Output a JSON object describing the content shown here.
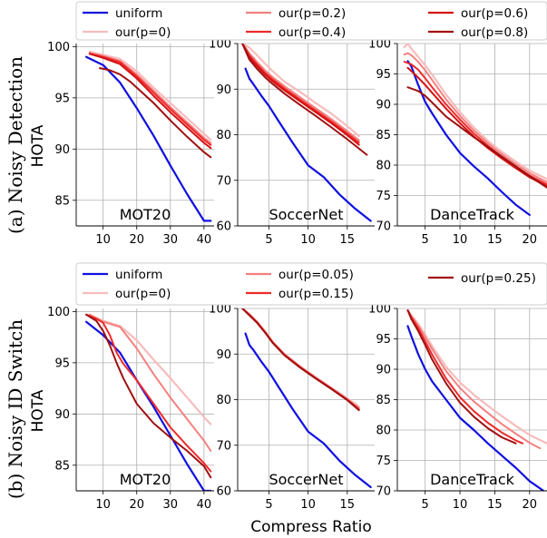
{
  "figure": {
    "xlabel": "Compress Ratio",
    "ylabel": "HOTA",
    "row_labels": [
      "(a) Noisy Detection",
      "(b) Noisy ID Switch"
    ]
  },
  "legends": [
    {
      "entries": [
        {
          "name": "uniform",
          "color": "#1010e0"
        },
        {
          "name": "our(p=0)",
          "color": "#f7bcbc"
        },
        {
          "name": "our(p=0.2)",
          "color": "#f58080"
        },
        {
          "name": "our(p=0.4)",
          "color": "#ee2a2a"
        },
        {
          "name": "our(p=0.6)",
          "color": "#d41111"
        },
        {
          "name": "our(p=0.8)",
          "color": "#a01010"
        }
      ]
    },
    {
      "entries": [
        {
          "name": "uniform",
          "color": "#1010e0"
        },
        {
          "name": "our(p=0)",
          "color": "#f7bcbc"
        },
        {
          "name": "our(p=0.05)",
          "color": "#f58080"
        },
        {
          "name": "our(p=0.15)",
          "color": "#ee2a2a"
        },
        {
          "name": "our(p=0.25)",
          "color": "#a01010"
        }
      ]
    }
  ],
  "chart_data": [
    {
      "type": "line",
      "title": "MOT20",
      "ylabel": "HOTA",
      "xlim": [
        2,
        43
      ],
      "ylim": [
        82.5,
        100.3
      ],
      "xticks": [
        10,
        20,
        30,
        40
      ],
      "yticks": [
        85,
        90,
        95,
        100
      ],
      "series": [
        {
          "name": "uniform",
          "x": [
            5,
            10,
            15,
            20,
            25,
            30,
            35,
            40,
            42
          ],
          "y": [
            99.0,
            98.2,
            96.5,
            94.0,
            91.3,
            88.4,
            85.6,
            83.0,
            83.0
          ]
        },
        {
          "name": "our(p=0)",
          "x": [
            6,
            10,
            15,
            20,
            25,
            30,
            35,
            40,
            42
          ],
          "y": [
            99.5,
            99.2,
            98.8,
            97.6,
            96.0,
            94.5,
            93.0,
            91.5,
            90.9
          ]
        },
        {
          "name": "our(p=0.2)",
          "x": [
            6,
            10,
            15,
            20,
            25,
            30,
            35,
            40,
            42
          ],
          "y": [
            99.4,
            99.1,
            98.6,
            97.3,
            95.7,
            94.1,
            92.6,
            91.1,
            90.6
          ]
        },
        {
          "name": "our(p=0.4)",
          "x": [
            6,
            10,
            15,
            20,
            25,
            30,
            35,
            40,
            42
          ],
          "y": [
            99.3,
            99.0,
            98.5,
            97.1,
            95.5,
            93.9,
            92.4,
            90.9,
            90.4
          ]
        },
        {
          "name": "our(p=0.6)",
          "x": [
            6,
            10,
            15,
            20,
            25,
            30,
            35,
            40,
            42
          ],
          "y": [
            99.3,
            98.9,
            98.3,
            96.9,
            95.2,
            93.6,
            92.1,
            90.6,
            90.1
          ]
        },
        {
          "name": "our(p=0.8)",
          "x": [
            9,
            12,
            15,
            18,
            21,
            25,
            30,
            35,
            40,
            42
          ],
          "y": [
            97.9,
            97.7,
            97.3,
            96.6,
            95.7,
            94.5,
            92.8,
            91.2,
            89.7,
            89.2
          ]
        }
      ]
    },
    {
      "type": "line",
      "title": "SoccerNet",
      "xlim": [
        1,
        18.5
      ],
      "ylim": [
        60,
        100
      ],
      "xticks": [
        5,
        10,
        15
      ],
      "yticks": [
        60,
        70,
        80,
        90,
        100
      ],
      "series": [
        {
          "name": "uniform",
          "x": [
            2,
            2.5,
            3,
            4,
            5,
            6,
            8,
            10,
            12,
            14,
            16,
            18
          ],
          "y": [
            94.5,
            92.3,
            91.1,
            88.6,
            86.3,
            83.6,
            78.3,
            73.3,
            70.7,
            66.9,
            63.8,
            61.1
          ]
        },
        {
          "name": "our(p=0)",
          "x": [
            1.6,
            2.5,
            3.5,
            4.5,
            5.5,
            7,
            9,
            11,
            13,
            15,
            16.5
          ],
          "y": [
            100,
            99.1,
            97.4,
            95.6,
            93.9,
            91.6,
            89.4,
            86.9,
            84.6,
            81.9,
            79.7
          ]
        },
        {
          "name": "our(p=0.2)",
          "x": [
            1.6,
            2.5,
            3.5,
            4.5,
            5.5,
            7,
            9,
            11,
            13,
            15,
            16.5
          ],
          "y": [
            100,
            97.9,
            95.9,
            94.1,
            92.6,
            90.6,
            88.2,
            85.8,
            83.4,
            80.8,
            78.8
          ]
        },
        {
          "name": "our(p=0.4)",
          "x": [
            1.6,
            2.5,
            3.5,
            4.5,
            5.5,
            7,
            9,
            11,
            13,
            15,
            16.5
          ],
          "y": [
            100,
            97.4,
            95.4,
            93.6,
            92.1,
            90.1,
            87.7,
            85.3,
            82.9,
            80.3,
            78.3
          ]
        },
        {
          "name": "our(p=0.6)",
          "x": [
            1.6,
            2.5,
            3.5,
            4.5,
            5.5,
            7,
            9,
            11,
            13,
            15,
            16.5
          ],
          "y": [
            100,
            97.0,
            95.0,
            93.2,
            91.7,
            89.7,
            87.3,
            84.9,
            82.5,
            79.9,
            77.8
          ]
        },
        {
          "name": "our(p=0.8)",
          "x": [
            1.6,
            2.5,
            3.5,
            4.5,
            5.5,
            7,
            9,
            11,
            13,
            15,
            17.5
          ],
          "y": [
            100,
            96.5,
            94.4,
            92.6,
            91.1,
            89.0,
            86.5,
            84.1,
            81.6,
            79.0,
            75.6
          ]
        }
      ]
    },
    {
      "type": "line",
      "title": "DanceTrack",
      "xlim": [
        1,
        22.5
      ],
      "ylim": [
        70,
        100
      ],
      "xticks": [
        5,
        10,
        15,
        20
      ],
      "yticks": [
        70,
        75,
        80,
        85,
        90,
        95,
        100
      ],
      "series": [
        {
          "name": "uniform",
          "x": [
            2.5,
            3,
            4,
            5,
            6,
            8,
            10,
            12,
            14,
            16,
            18,
            20
          ],
          "y": [
            97.1,
            96.3,
            93.2,
            90.4,
            88.5,
            85.0,
            82.0,
            79.8,
            77.8,
            75.6,
            73.5,
            71.8
          ]
        },
        {
          "name": "our(p=0)",
          "x": [
            2,
            2.5,
            3,
            4,
            5,
            6,
            8,
            10,
            12,
            14,
            16,
            18,
            20,
            22.5
          ],
          "y": [
            99.4,
            100,
            99.2,
            97.8,
            96.4,
            94.9,
            91.6,
            88.7,
            86.2,
            84.0,
            82.2,
            80.6,
            79.1,
            77.7
          ]
        },
        {
          "name": "our(p=0.2)",
          "x": [
            2,
            2.5,
            3,
            4,
            5,
            6,
            8,
            10,
            12,
            14,
            16,
            18,
            20,
            22.5
          ],
          "y": [
            98.2,
            98.4,
            98.1,
            97.0,
            95.6,
            94.0,
            90.8,
            88.1,
            85.7,
            83.6,
            81.8,
            80.2,
            78.7,
            77.2
          ]
        },
        {
          "name": "our(p=0.4)",
          "x": [
            2,
            2.5,
            3,
            4,
            5,
            6,
            8,
            10,
            12,
            14,
            16,
            18,
            20,
            22.5
          ],
          "y": [
            97.0,
            96.8,
            96.6,
            95.7,
            94.3,
            92.8,
            90.0,
            87.5,
            85.2,
            83.2,
            81.4,
            79.8,
            78.3,
            76.8
          ]
        },
        {
          "name": "our(p=0.6)",
          "x": [
            2.5,
            3,
            4,
            5,
            6,
            8,
            10,
            12,
            14,
            16,
            18,
            20,
            22.5
          ],
          "y": [
            96.0,
            95.5,
            94.4,
            93.2,
            91.9,
            89.3,
            86.9,
            84.7,
            82.8,
            81.1,
            79.5,
            78.0,
            76.5
          ]
        },
        {
          "name": "our(p=0.8)",
          "x": [
            2.5,
            3,
            4,
            5,
            6,
            8,
            10,
            12,
            14,
            16,
            18,
            20,
            22.5
          ],
          "y": [
            92.8,
            92.6,
            92.2,
            91.4,
            90.3,
            88.0,
            86.3,
            84.6,
            83.0,
            81.4,
            79.8,
            78.2,
            76.3
          ]
        }
      ]
    },
    {
      "type": "line",
      "title": "MOT20",
      "ylabel": "HOTA",
      "xlim": [
        2,
        43
      ],
      "ylim": [
        82.5,
        100.3
      ],
      "xticks": [
        10,
        20,
        30,
        40
      ],
      "yticks": [
        85,
        90,
        95,
        100
      ],
      "series": [
        {
          "name": "uniform",
          "x": [
            5,
            10,
            15,
            20,
            25,
            30,
            35,
            40,
            42
          ],
          "y": [
            99.0,
            97.7,
            96.0,
            93.3,
            90.7,
            87.9,
            85.1,
            82.5,
            82.5
          ]
        },
        {
          "name": "our(p=0)",
          "x": [
            6,
            10,
            15,
            20,
            25,
            30,
            35,
            40,
            42
          ],
          "y": [
            99.7,
            99.1,
            98.6,
            97.2,
            95.3,
            93.5,
            91.6,
            89.7,
            89.0
          ]
        },
        {
          "name": "our(p=0.05)",
          "x": [
            6,
            10,
            15,
            20,
            25,
            30,
            35,
            40,
            42
          ],
          "y": [
            99.7,
            99.0,
            98.5,
            96.4,
            93.9,
            91.6,
            89.5,
            87.4,
            86.4
          ]
        },
        {
          "name": "our(p=0.15)",
          "x": [
            5,
            8,
            10,
            12,
            14,
            16,
            20,
            25,
            30,
            35,
            40,
            42
          ],
          "y": [
            99.7,
            99.3,
            98.9,
            97.7,
            96.0,
            94.9,
            93.3,
            91.0,
            88.7,
            86.9,
            85.2,
            84.4
          ]
        },
        {
          "name": "our(p=0.25)",
          "x": [
            5,
            8,
            10,
            12,
            14,
            16,
            20,
            25,
            30,
            35,
            40,
            42
          ],
          "y": [
            99.7,
            99.1,
            98.1,
            96.7,
            95.0,
            93.5,
            91.0,
            89.1,
            87.7,
            86.4,
            84.9,
            83.8
          ]
        }
      ]
    },
    {
      "type": "line",
      "title": "SoccerNet",
      "xlim": [
        1,
        18.5
      ],
      "ylim": [
        60,
        100
      ],
      "xticks": [
        5,
        10,
        15
      ],
      "yticks": [
        60,
        70,
        80,
        90,
        100
      ],
      "series": [
        {
          "name": "uniform",
          "x": [
            2,
            2.5,
            3,
            4,
            5,
            6,
            8,
            10,
            12,
            14,
            16,
            18
          ],
          "y": [
            94.5,
            92.0,
            90.9,
            88.4,
            86.1,
            83.4,
            78.0,
            73.0,
            70.4,
            66.6,
            63.5,
            60.8
          ]
        },
        {
          "name": "our(p=0)",
          "x": [
            1.6,
            2.5,
            3.5,
            4.5,
            5.5,
            7,
            9,
            11,
            13,
            15,
            16.5
          ],
          "y": [
            100,
            98.8,
            97.1,
            95.0,
            92.7,
            90.0,
            87.3,
            84.9,
            82.6,
            80.3,
            78.5
          ]
        },
        {
          "name": "our(p=0.05)",
          "x": [
            1.6,
            2.5,
            3.5,
            4.5,
            5.5,
            7,
            9,
            11,
            13,
            15,
            16.5
          ],
          "y": [
            100,
            98.7,
            97.0,
            94.9,
            92.6,
            89.9,
            87.2,
            84.8,
            82.5,
            80.1,
            78.2
          ]
        },
        {
          "name": "our(p=0.15)",
          "x": [
            1.6,
            2.5,
            3.5,
            4.5,
            5.5,
            7,
            9,
            11,
            13,
            15,
            16.5
          ],
          "y": [
            100,
            98.6,
            96.9,
            94.8,
            92.5,
            89.8,
            87.1,
            84.7,
            82.4,
            80.0,
            77.9
          ]
        },
        {
          "name": "our(p=0.25)",
          "x": [
            1.6,
            2.5,
            3.5,
            4.5,
            5.5,
            7,
            9,
            11,
            13,
            15,
            16.5
          ],
          "y": [
            100,
            98.5,
            96.8,
            94.7,
            92.4,
            89.7,
            87.0,
            84.6,
            82.3,
            79.9,
            77.7
          ]
        }
      ]
    },
    {
      "type": "line",
      "title": "DanceTrack",
      "xlim": [
        1,
        22.5
      ],
      "ylim": [
        70,
        100
      ],
      "xticks": [
        5,
        10,
        15,
        20
      ],
      "yticks": [
        70,
        75,
        80,
        85,
        90,
        95,
        100
      ],
      "series": [
        {
          "name": "uniform",
          "x": [
            2.5,
            3,
            4,
            5,
            6,
            8,
            10,
            12,
            14,
            16,
            18,
            20,
            22
          ],
          "y": [
            97.1,
            95.5,
            92.5,
            90.0,
            88.0,
            85.0,
            82.0,
            80.0,
            77.8,
            75.8,
            73.8,
            71.6,
            70.0
          ]
        },
        {
          "name": "our(p=0)",
          "x": [
            2.5,
            3,
            4,
            5,
            6,
            8,
            10,
            12,
            14,
            16,
            18,
            20,
            22.5
          ],
          "y": [
            99.7,
            98.9,
            97.5,
            95.7,
            93.8,
            90.4,
            87.8,
            85.8,
            84.0,
            82.3,
            80.7,
            79.2,
            77.8
          ]
        },
        {
          "name": "our(p=0.05)",
          "x": [
            2.5,
            3,
            4,
            5,
            6,
            8,
            10,
            12,
            14,
            16,
            18,
            20,
            21.5
          ],
          "y": [
            99.7,
            98.8,
            97.2,
            95.3,
            93.3,
            89.7,
            86.9,
            84.7,
            82.8,
            81.0,
            79.4,
            77.9,
            77.0
          ]
        },
        {
          "name": "our(p=0.15)",
          "x": [
            2.5,
            3,
            4,
            5,
            6,
            8,
            10,
            12,
            14,
            16,
            18,
            19
          ],
          "y": [
            99.7,
            98.6,
            96.8,
            94.6,
            92.4,
            88.5,
            85.4,
            83.1,
            81.2,
            79.6,
            78.3,
            77.8
          ]
        },
        {
          "name": "our(p=0.25)",
          "x": [
            2.5,
            3,
            4,
            5,
            6,
            8,
            10,
            12,
            14,
            16,
            18
          ],
          "y": [
            99.7,
            98.3,
            96.3,
            94.0,
            91.6,
            87.7,
            84.5,
            82.2,
            80.3,
            78.8,
            77.8
          ]
        }
      ]
    }
  ]
}
